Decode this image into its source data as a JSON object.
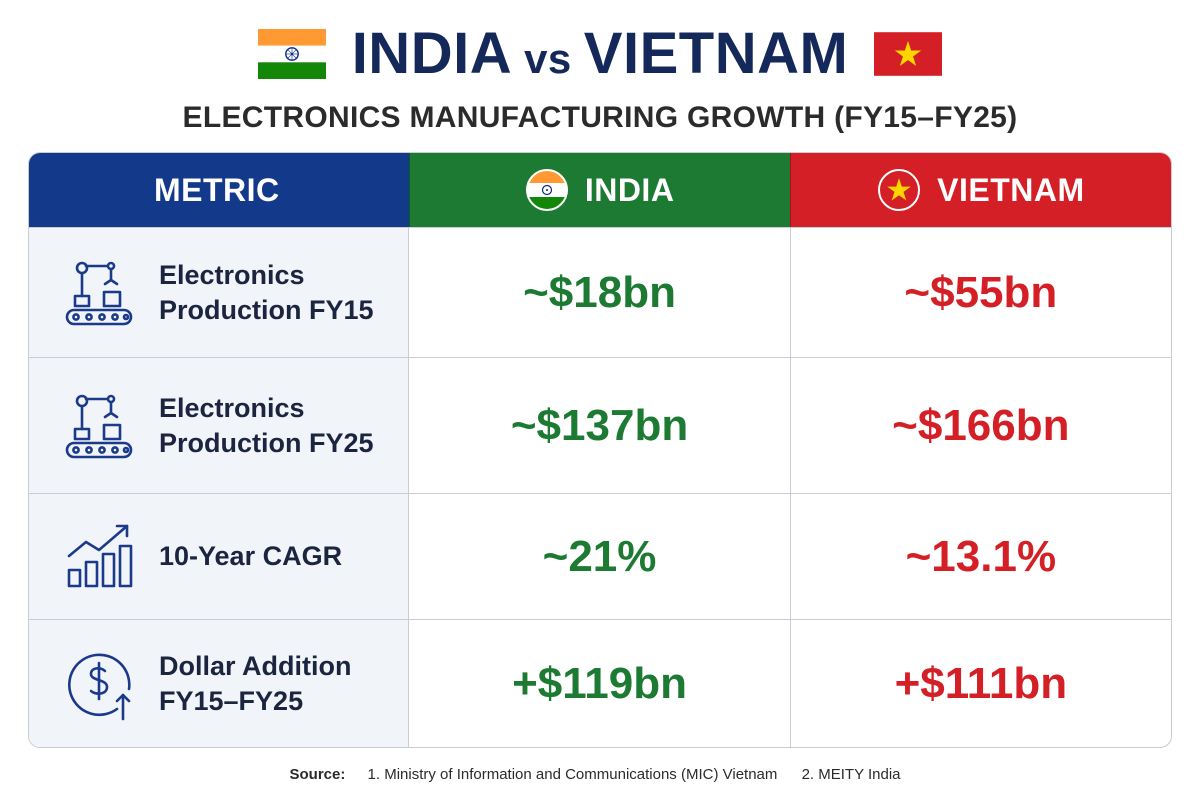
{
  "title": {
    "left": "INDIA",
    "vs": "vs",
    "right": "VIETNAM"
  },
  "subtitle": "ELECTRONICS MANUFACTURING GROWTH (FY15–FY25)",
  "colors": {
    "navy": "#13398a",
    "india_green": "#1d7a32",
    "vietnam_red": "#d41f26",
    "saffron": "#ff9933",
    "star_yellow": "#ffd500"
  },
  "icons": {
    "india_flag": "india-flag-icon",
    "vietnam_flag": "vietnam-flag-icon",
    "rows": [
      "robot-arm-conveyor-icon",
      "robot-arm-conveyor-icon",
      "growth-bar-chart-icon",
      "dollar-up-arrow-icon"
    ]
  },
  "chart_data": {
    "type": "table",
    "columns": [
      "METRIC",
      "INDIA",
      "VIETNAM"
    ],
    "rows": [
      {
        "metric": "Electronics Production FY15",
        "india": "~$18bn",
        "vietnam": "~$55bn"
      },
      {
        "metric": "Electronics Production FY25",
        "india": "~$137bn",
        "vietnam": "~$166bn"
      },
      {
        "metric": "10-Year CAGR",
        "india": "~21%",
        "vietnam": "~13.1%"
      },
      {
        "metric": "Dollar Addition FY15–FY25",
        "india": "+$119bn",
        "vietnam": "+$111bn"
      }
    ]
  },
  "source": {
    "label": "Source:",
    "items": [
      "1. Ministry of Information and Communications (MIC) Vietnam",
      "2. MEITY India"
    ]
  }
}
